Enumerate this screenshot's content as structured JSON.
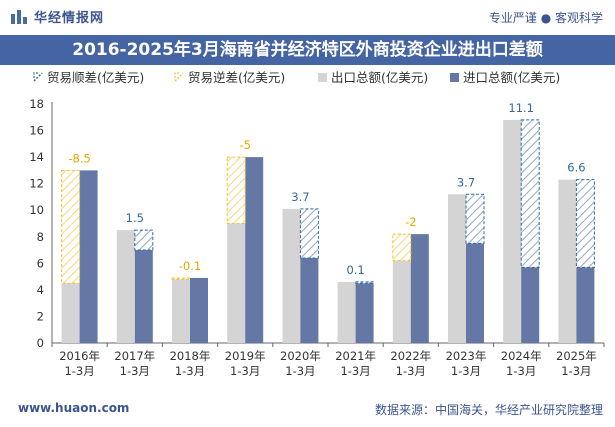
{
  "header": {
    "brand": "华经情报网",
    "tagline": "专业严谨 ● 客观科学"
  },
  "chart_data": {
    "type": "bar",
    "title": "2016-2025年3月海南省并经济特区外商投资企业进出口差额",
    "categories": [
      "2016年\n1-3月",
      "2017年\n1-3月",
      "2018年\n1-3月",
      "2019年\n1-3月",
      "2020年\n1-3月",
      "2021年\n1-3月",
      "2022年\n1-3月",
      "2023年\n1-3月",
      "2024年\n1-3月",
      "2025年\n1-3月"
    ],
    "series": [
      {
        "name": "出口总额(亿美元)",
        "values": [
          4.5,
          8.5,
          4.8,
          9.0,
          10.1,
          4.6,
          6.2,
          11.2,
          16.8,
          12.3
        ]
      },
      {
        "name": "进口总额(亿美元)",
        "values": [
          13.0,
          7.0,
          4.9,
          14.0,
          6.4,
          4.5,
          8.2,
          7.5,
          5.7,
          5.7
        ]
      }
    ],
    "balance": {
      "values": [
        -8.5,
        1.5,
        -0.1,
        -5,
        3.7,
        0.1,
        -2,
        3.7,
        11.1,
        6.6
      ],
      "labels": [
        "-8.5",
        "1.5",
        "-0.1",
        "-5",
        "3.7",
        "0.1",
        "-2",
        "3.7",
        "11.1",
        "6.6"
      ]
    },
    "legend": [
      {
        "label": "贸易顺差(亿美元)",
        "style": "surplus"
      },
      {
        "label": "贸易逆差(亿美元)",
        "style": "deficit"
      },
      {
        "label": "出口总额(亿美元)",
        "style": "export"
      },
      {
        "label": "进口总额(亿美元)",
        "style": "import"
      }
    ],
    "ylim": [
      0,
      18
    ],
    "yticks": [
      0,
      2,
      4,
      6,
      8,
      10,
      12,
      14,
      16,
      18
    ],
    "legend_position": "top",
    "grid": false,
    "colors": {
      "export": "#d4d4d4",
      "import": "#6477a5",
      "surplus": "#2f6a9f",
      "deficit": "#f2c12e"
    }
  },
  "footer": {
    "url": "www.huaon.com",
    "source": "数据来源：中国海关，华经产业研究院整理"
  }
}
